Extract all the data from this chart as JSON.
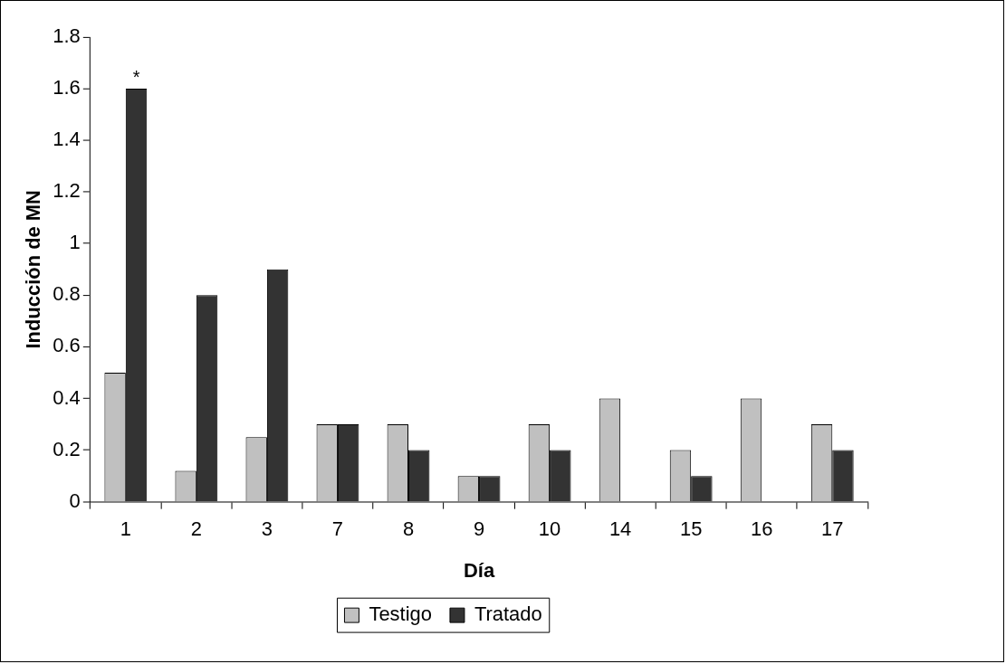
{
  "chart_data": {
    "type": "bar",
    "xlabel": "Día",
    "ylabel": "Inducción de MN",
    "categories": [
      "1",
      "2",
      "3",
      "7",
      "8",
      "9",
      "10",
      "14",
      "15",
      "16",
      "17"
    ],
    "series": [
      {
        "name": "Testigo",
        "color": "#c0c0c0",
        "values": [
          0.5,
          0.12,
          0.25,
          0.3,
          0.3,
          0.1,
          0.3,
          0.4,
          0.2,
          0.4,
          0.3
        ]
      },
      {
        "name": "Tratado",
        "color": "#333333",
        "values": [
          1.6,
          0.8,
          0.9,
          0.3,
          0.2,
          0.1,
          0.2,
          0,
          0.1,
          0,
          0.2
        ]
      }
    ],
    "ylim": [
      0,
      1.8
    ],
    "yticks": [
      0,
      0.2,
      0.4,
      0.6,
      0.8,
      1,
      1.2,
      1.4,
      1.6,
      1.8
    ],
    "grid": false,
    "legend": "bottom",
    "annotations": [
      {
        "text": "*",
        "x": "1",
        "y": 1.6
      }
    ]
  }
}
